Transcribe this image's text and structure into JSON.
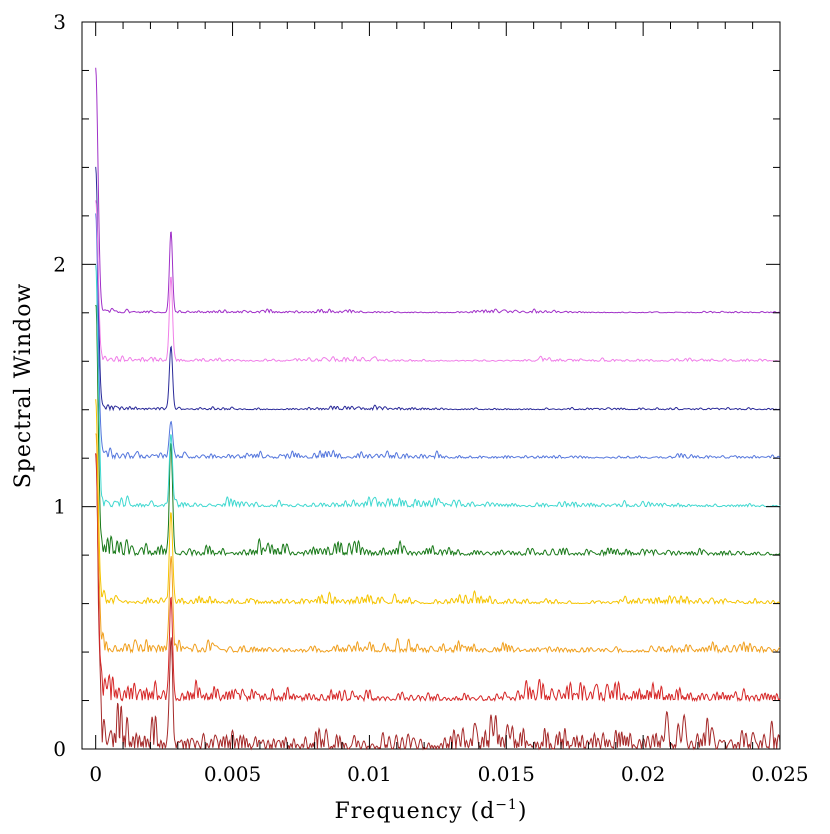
{
  "chart_data": {
    "type": "line",
    "xlabel": "Frequency (d",
    "xlabel_superscript": "−1",
    "xlabel_suffix": ")",
    "ylabel": "Spectral Window",
    "xlim": [
      -0.0005,
      0.025
    ],
    "ylim": [
      0,
      3
    ],
    "x_ticks": [
      0,
      0.005,
      0.01,
      0.015,
      0.02,
      0.025
    ],
    "x_tick_labels": [
      "0",
      "0.005",
      "0.01",
      "0.015",
      "0.02",
      "0.025"
    ],
    "y_ticks": [
      0,
      1,
      2,
      3
    ],
    "y_tick_labels": [
      "0",
      "1",
      "2",
      "3"
    ],
    "grid": false,
    "legend": "none",
    "series": [
      {
        "offset": 0.0,
        "color": "#a52a2a",
        "peak0": 1.2,
        "alias": 0.42,
        "noise": 0.09
      },
      {
        "offset": 0.2,
        "color": "#d62828",
        "peak0": 1.0,
        "alias": 0.42,
        "noise": 0.06
      },
      {
        "offset": 0.4,
        "color": "#f0a020",
        "peak0": 0.9,
        "alias": 0.38,
        "noise": 0.035
      },
      {
        "offset": 0.6,
        "color": "#f5c400",
        "peak0": 0.8,
        "alias": 0.36,
        "noise": 0.025
      },
      {
        "offset": 0.8,
        "color": "#1a7a1a",
        "peak0": 1.0,
        "alias": 0.45,
        "noise": 0.04
      },
      {
        "offset": 1.0,
        "color": "#40d8d0",
        "peak0": 0.95,
        "alias": 0.3,
        "noise": 0.025
      },
      {
        "offset": 1.2,
        "color": "#5577dd",
        "peak0": 1.0,
        "alias": 0.15,
        "noise": 0.02
      },
      {
        "offset": 1.4,
        "color": "#2a2a99",
        "peak0": 1.0,
        "alias": 0.26,
        "noise": 0.01
      },
      {
        "offset": 1.6,
        "color": "#f07ee8",
        "peak0": 0.65,
        "alias": 0.35,
        "noise": 0.015
      },
      {
        "offset": 1.8,
        "color": "#a030c8",
        "peak0": 1.0,
        "alias": 0.33,
        "noise": 0.01
      }
    ]
  }
}
